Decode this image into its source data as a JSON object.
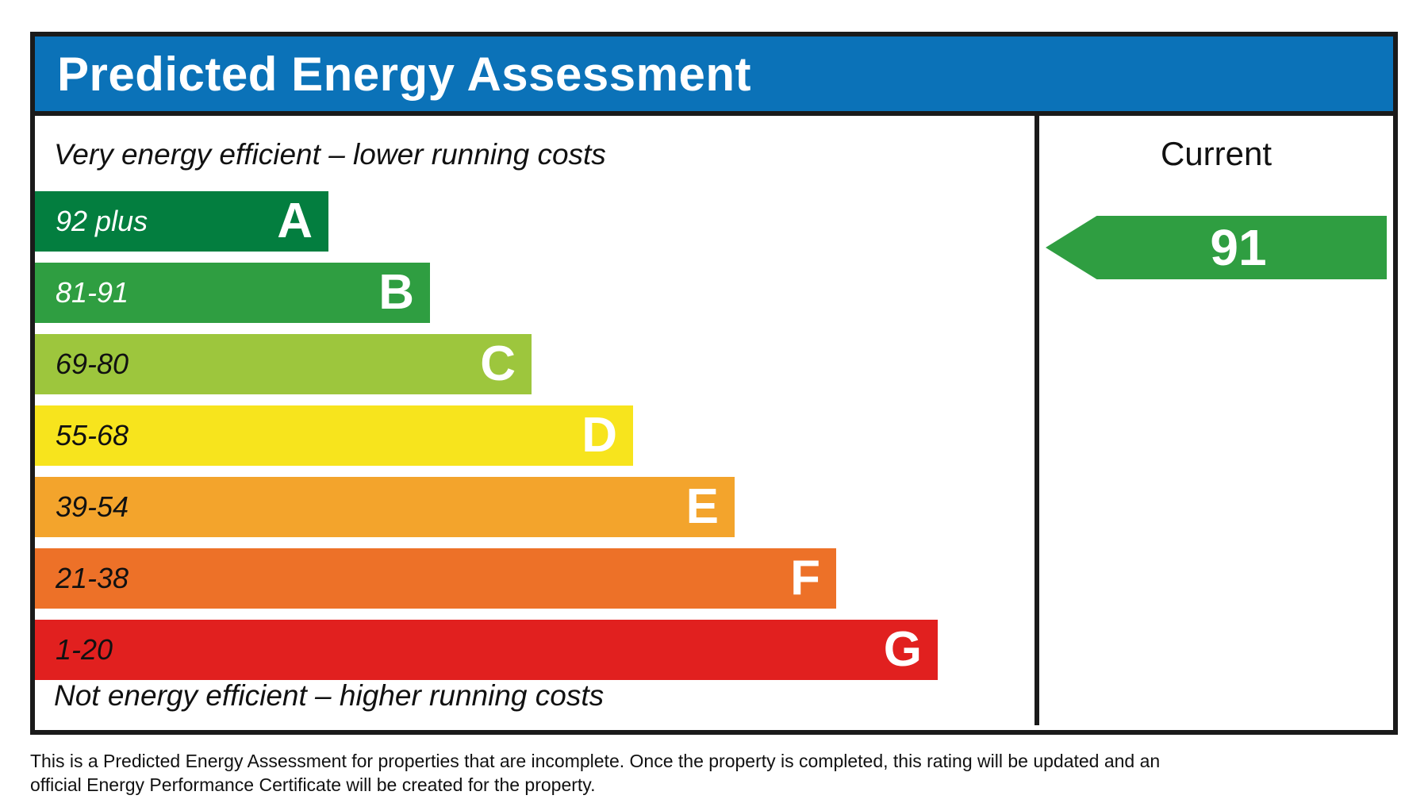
{
  "title": "Predicted Energy Assessment",
  "colors": {
    "header_bg": "#0b72b8",
    "border": "#1a1a1a"
  },
  "chart_data": {
    "type": "bar",
    "title": "Predicted Energy Assessment",
    "top_note": "Very energy efficient – lower running costs",
    "bottom_note": "Not energy efficient – higher running costs",
    "bands": [
      {
        "letter": "A",
        "range": "92 plus",
        "color": "#037e3f",
        "text_color": "#ffffff"
      },
      {
        "letter": "B",
        "range": "81-91",
        "color": "#2f9e41",
        "text_color": "#ffffff"
      },
      {
        "letter": "C",
        "range": "69-80",
        "color": "#9dc63d",
        "text_color": "#111111"
      },
      {
        "letter": "D",
        "range": "55-68",
        "color": "#f7e41d",
        "text_color": "#111111"
      },
      {
        "letter": "E",
        "range": "39-54",
        "color": "#f3a42c",
        "text_color": "#111111"
      },
      {
        "letter": "F",
        "range": "21-38",
        "color": "#ed7128",
        "text_color": "#111111"
      },
      {
        "letter": "G",
        "range": "1-20",
        "color": "#e1201f",
        "text_color": "#111111"
      }
    ],
    "legend_position": "right",
    "current_rating": {
      "column_header": "Current",
      "value": "91",
      "band": "B",
      "arrow_color": "#2f9e41"
    }
  },
  "footer": {
    "lines": [
      "This is a Predicted Energy Assessment for properties that are incomplete. Once the property is completed, this rating will be updated and an",
      "official Energy Performance Certificate will be created for the property."
    ]
  }
}
